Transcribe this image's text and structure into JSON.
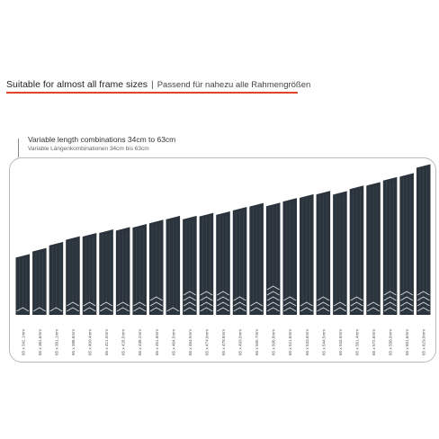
{
  "header": {
    "title_en": "Suitable for almost all frame sizes",
    "separator": "|",
    "title_de": "Passend für nahezu alle Rahmengrößen",
    "accent_color": "#e0452c"
  },
  "subtitle": {
    "en": "Variable length combinations 34cm to 63cm",
    "de": "Variable Längenkombinationen 34cm bis 63cm"
  },
  "chart_data": {
    "type": "bar",
    "bar_color": "#2b343c",
    "categories": [
      "65 x 342.1mm",
      "65 x 361.6mm",
      "65 x 381.1mm",
      "65 x 398.8mm",
      "65 x 409.4mm",
      "65 x 421.0mm",
      "65 x 428.5mm",
      "65 x 438.2mm",
      "65 x 451.8mm",
      "65 x 464.5mm",
      "65 x 464.5mm",
      "65 x 474.0mm",
      "65 x 478.8mm",
      "65 x 493.0mm",
      "65 x 505.7mm",
      "65 x 506.8mm",
      "65 x 521.6mm",
      "65 x 533.8mm",
      "65 x 544.5mm",
      "65 x 543.8mm",
      "65 x 561.4mm",
      "65 x 572.8mm",
      "65 x 588.9mm",
      "65 x 601.6mm",
      "65 x 629.9mm"
    ],
    "values": [
      342.1,
      361.6,
      381.1,
      398.8,
      409.4,
      421.0,
      428.5,
      438.2,
      451.8,
      464.5,
      464.5,
      474.0,
      478.8,
      493.0,
      505.7,
      506.8,
      521.6,
      533.8,
      544.5,
      543.8,
      561.4,
      572.8,
      588.9,
      601.6,
      629.9
    ],
    "segments": [
      1,
      1,
      1,
      2,
      2,
      2,
      2,
      2,
      3,
      1,
      4,
      4,
      4,
      3,
      2,
      5,
      3,
      2,
      3,
      2,
      3,
      2,
      4,
      4,
      4
    ],
    "ylim": [
      150,
      640
    ]
  }
}
